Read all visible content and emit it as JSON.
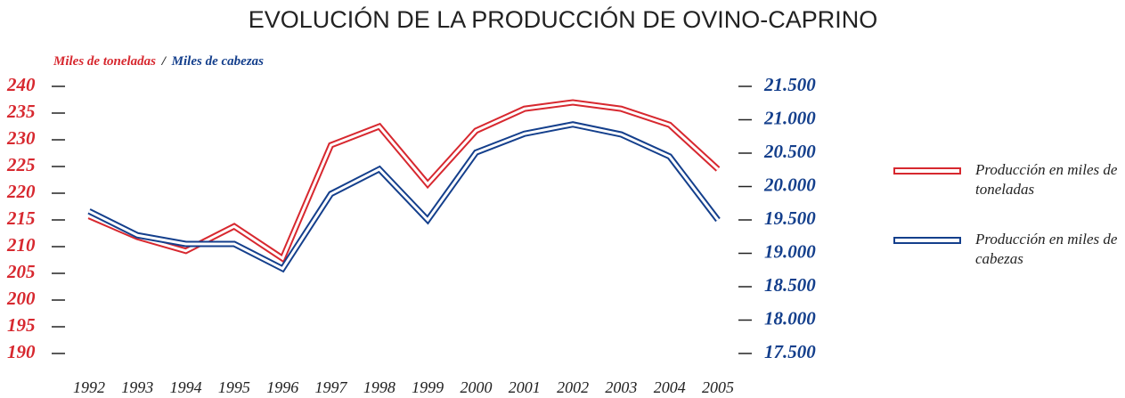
{
  "chart_data": {
    "type": "line",
    "title": "EVOLUCIÓN DE LA PRODUCCIÓN DE OVINO-CAPRINO",
    "y_label": "Miles de toneladas",
    "axis_label_separator": "/",
    "y2_label": "Miles de cabezas",
    "categories": [
      "1992",
      "1993",
      "1994",
      "1995",
      "1996",
      "1997",
      "1998",
      "1999",
      "2000",
      "2001",
      "2002",
      "2003",
      "2004",
      "2005"
    ],
    "series": [
      {
        "name": "Producción en miles de toneladas",
        "color": "#d7282f",
        "axis": "y",
        "values": [
          215.7,
          211.8,
          209.2,
          213.8,
          207.8,
          229,
          232.5,
          221.7,
          231.7,
          235.8,
          237,
          235.8,
          232.8,
          224.5
        ]
      },
      {
        "name": "Producción en miles de cabezas",
        "color": "#143f8c",
        "axis": "y2",
        "values": [
          19630,
          19270,
          19140,
          19140,
          18770,
          19890,
          20260,
          19500,
          20510,
          20790,
          20930,
          20780,
          20450,
          19500
        ]
      }
    ],
    "ylim": [
      190,
      240
    ],
    "yticks": [
      190,
      195,
      200,
      205,
      210,
      215,
      220,
      225,
      230,
      235,
      240
    ],
    "y2lim": [
      17500,
      21500
    ],
    "y2ticks": [
      {
        "value": 17500,
        "label": "17.500"
      },
      {
        "value": 18000,
        "label": "18.000"
      },
      {
        "value": 18500,
        "label": "18.500"
      },
      {
        "value": 19000,
        "label": "19.000"
      },
      {
        "value": 19500,
        "label": "19.500"
      },
      {
        "value": 20000,
        "label": "20.000"
      },
      {
        "value": 20500,
        "label": "20.500"
      },
      {
        "value": 21000,
        "label": "21.000"
      },
      {
        "value": 21500,
        "label": "21.500"
      }
    ],
    "grid": false,
    "legend": "right"
  }
}
